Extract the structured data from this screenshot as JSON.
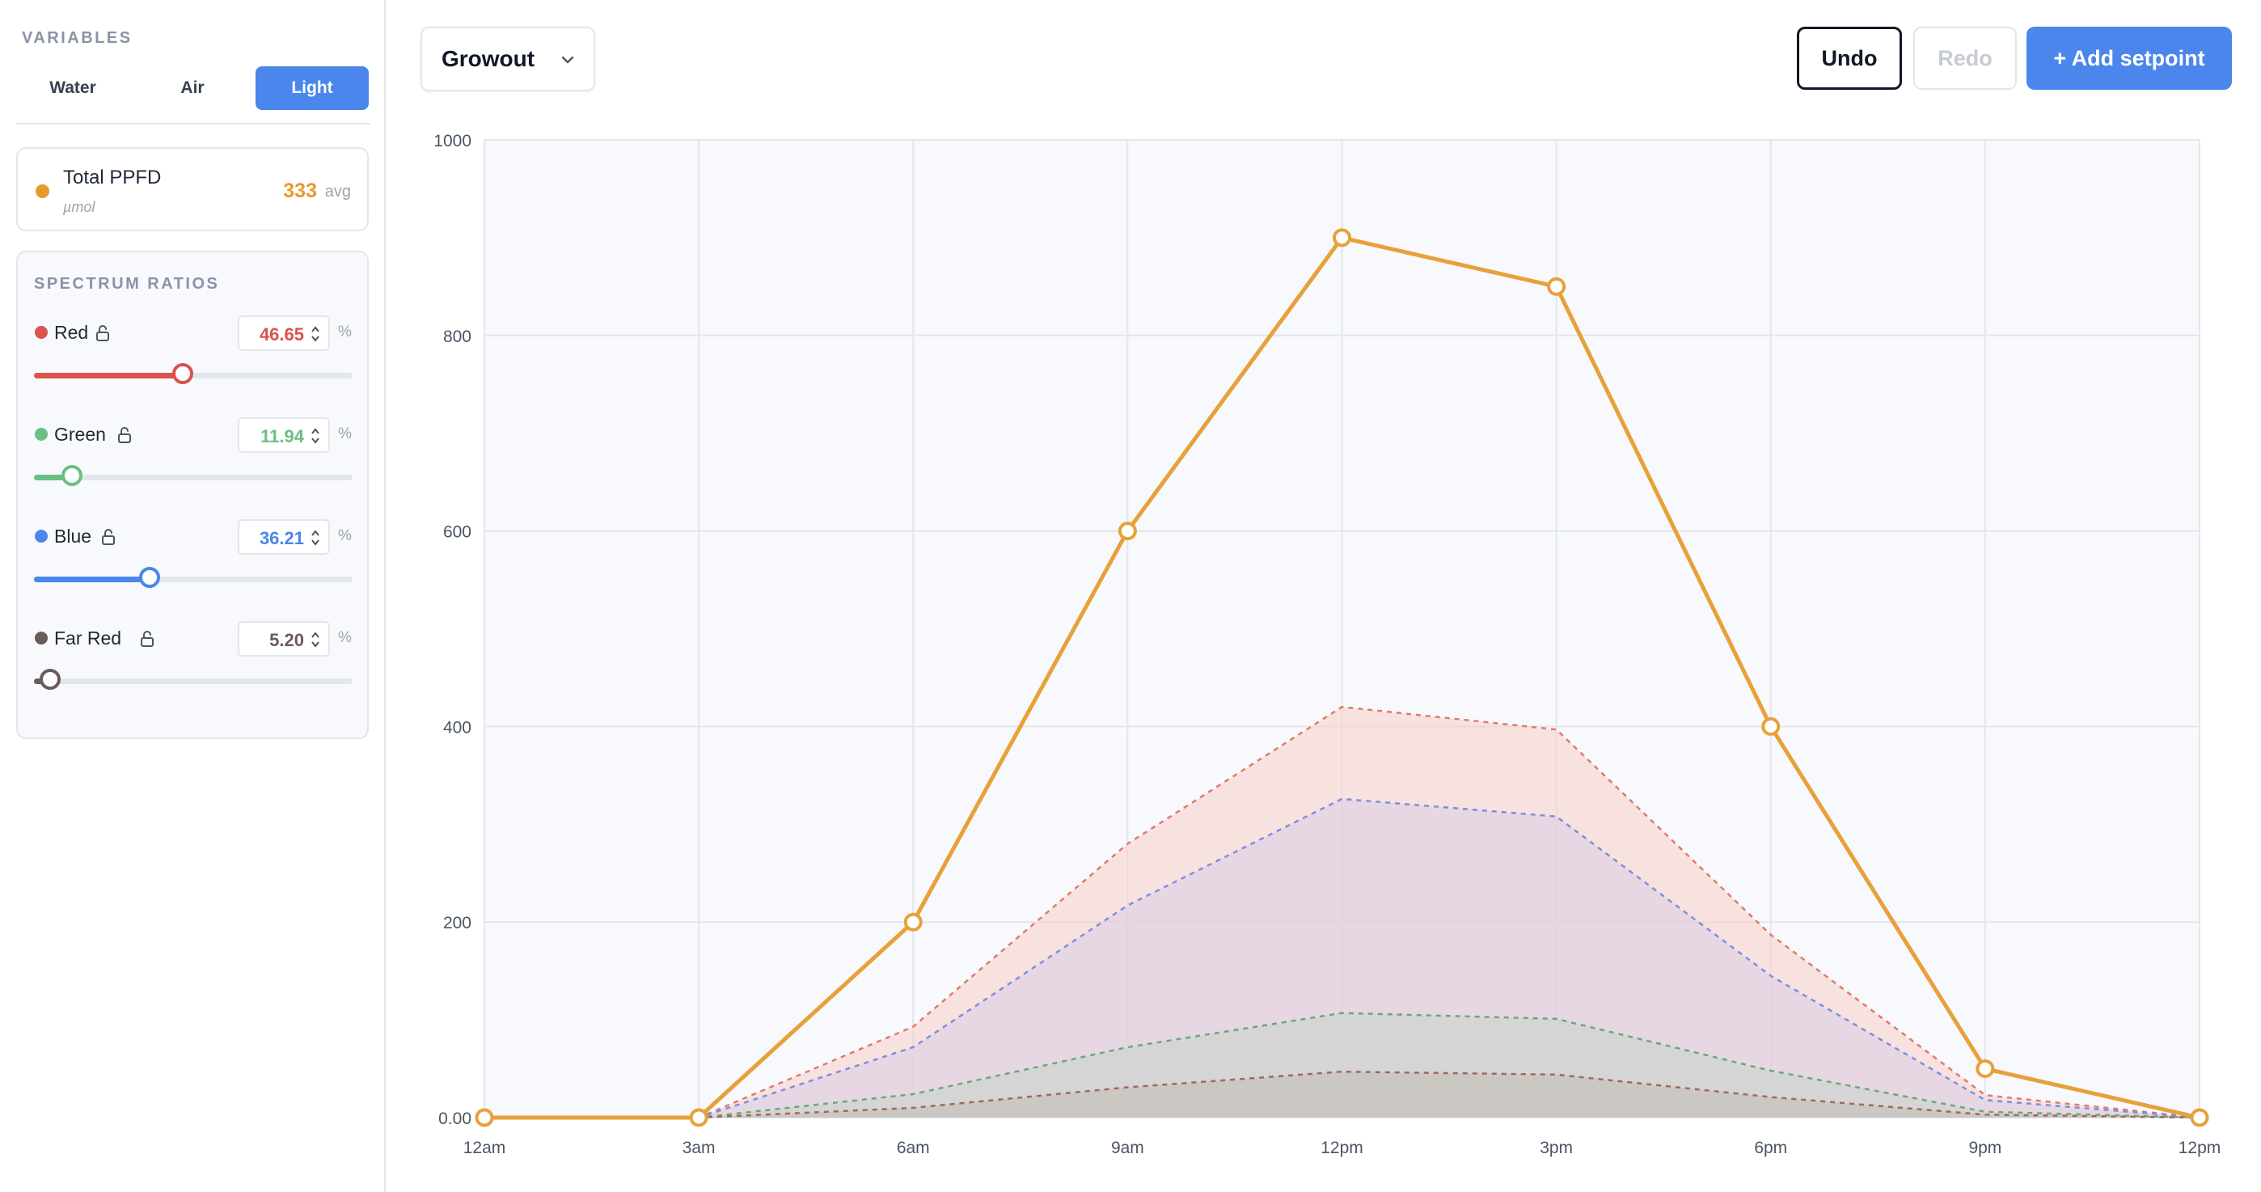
{
  "sidebar": {
    "variables_title": "VARIABLES",
    "tabs": [
      {
        "label": "Water",
        "active": false
      },
      {
        "label": "Air",
        "active": false
      },
      {
        "label": "Light",
        "active": true
      }
    ],
    "total": {
      "label": "Total PPFD",
      "unit": "µmol",
      "value": "333",
      "suffix": "avg",
      "color": "#e69a2e"
    },
    "spectrum_title": "SPECTRUM RATIOS",
    "spectrum": [
      {
        "name": "Red",
        "value": "46.65",
        "fraction": 0.4665,
        "color": "#d9534f",
        "unit": "%"
      },
      {
        "name": "Green",
        "value": "11.94",
        "fraction": 0.1194,
        "color": "#6cbf84",
        "unit": "%"
      },
      {
        "name": "Blue",
        "value": "36.21",
        "fraction": 0.3621,
        "color": "#4a86ec",
        "unit": "%"
      },
      {
        "name": "Far Red",
        "value": "5.20",
        "fraction": 0.052,
        "color": "#6b5b5b",
        "unit": "%"
      }
    ]
  },
  "toolbar": {
    "stage": "Growout",
    "undo_label": "Undo",
    "redo_label": "Redo",
    "add_label": "+ Add setpoint"
  },
  "chart_data": {
    "type": "line",
    "x": [
      "12am",
      "3am",
      "6am",
      "9am",
      "12pm",
      "3pm",
      "6pm",
      "9pm",
      "12pm"
    ],
    "ylim": [
      0,
      1000
    ],
    "yticks": [
      "0.00",
      "200",
      "400",
      "600",
      "800",
      "1000"
    ],
    "ytick_values": [
      0,
      200,
      400,
      600,
      800,
      1000
    ],
    "grid": true,
    "series": [
      {
        "name": "Total PPFD",
        "style": "solid",
        "color": "#e8a13a",
        "values": [
          0,
          0,
          200,
          600,
          900,
          850,
          400,
          50,
          0
        ]
      },
      {
        "name": "Red",
        "style": "dashed-area",
        "color": "#e07a6c",
        "fill": "#f6cfc8",
        "values": [
          0,
          0,
          93,
          280,
          420,
          397,
          187,
          23,
          0
        ]
      },
      {
        "name": "Blue",
        "style": "dashed-area",
        "color": "#7b8fe0",
        "fill": "#d9cde6",
        "values": [
          0,
          0,
          72,
          217,
          326,
          308,
          145,
          18,
          0
        ]
      },
      {
        "name": "Green",
        "style": "dashed-area",
        "color": "#6aa87a",
        "fill": "#c9d3cc",
        "values": [
          0,
          0,
          24,
          72,
          107,
          101,
          48,
          6,
          0
        ]
      },
      {
        "name": "Far Red",
        "style": "dashed-area",
        "color": "#a0695c",
        "fill": "#c2bdb6",
        "values": [
          0,
          0,
          10,
          31,
          47,
          44,
          21,
          3,
          0
        ]
      }
    ]
  }
}
